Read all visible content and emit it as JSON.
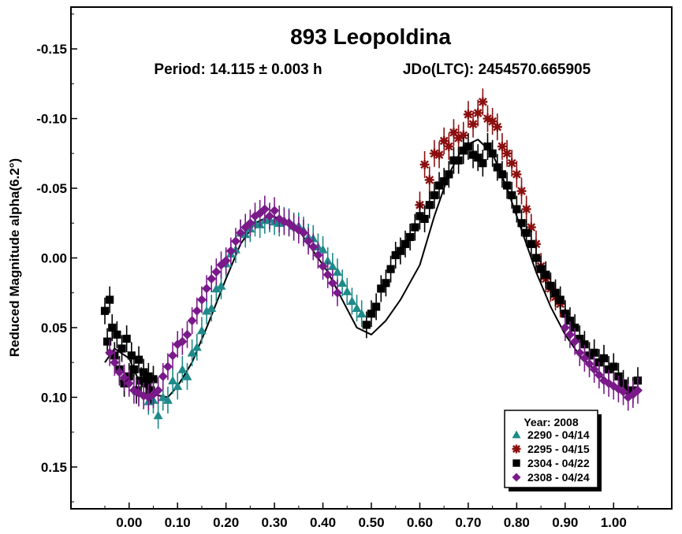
{
  "chart_data": {
    "type": "scatter",
    "title": "893 Leopoldina",
    "subtitle_period": "Period: 14.115 ± 0.003 h",
    "subtitle_epoch": "JDo(LTC): 2454570.665905",
    "xlabel": "",
    "ylabel": "Reduced Magnitude alpha(6.2°)",
    "xlim": [
      -0.12,
      1.12
    ],
    "ylim": [
      0.18,
      -0.18
    ],
    "y_inverted": true,
    "x_ticks": [
      0.0,
      0.1,
      0.2,
      0.3,
      0.4,
      0.5,
      0.6,
      0.7,
      0.8,
      0.9,
      1.0
    ],
    "x_tick_labels": [
      "0.00",
      "0.10",
      "0.20",
      "0.30",
      "0.40",
      "0.50",
      "0.60",
      "0.70",
      "0.80",
      "0.90",
      "1.00"
    ],
    "y_ticks": [
      -0.15,
      -0.1,
      -0.05,
      0.0,
      0.05,
      0.1,
      0.15
    ],
    "y_tick_labels": [
      "-0.15",
      "-0.10",
      "-0.05",
      "0.00",
      "0.05",
      "0.10",
      "0.15"
    ],
    "grid": false,
    "legend": {
      "title": "Year: 2008",
      "placement": "bottom-right",
      "entries": [
        {
          "label": "2290 - 04/14",
          "marker": "triangle",
          "color": "#1f8a8a"
        },
        {
          "label": "2295 - 04/15",
          "marker": "asterisk",
          "color": "#8b0f0f"
        },
        {
          "label": "2304 - 04/22",
          "marker": "square",
          "color": "#000000"
        },
        {
          "label": "2308 - 04/24",
          "marker": "diamond",
          "color": "#7a1a8a"
        }
      ]
    },
    "fit_curve": {
      "name": "Fourier fit",
      "color": "#000000",
      "x": [
        -0.05,
        -0.03,
        0.0,
        0.02,
        0.05,
        0.08,
        0.1,
        0.13,
        0.16,
        0.2,
        0.23,
        0.26,
        0.29,
        0.32,
        0.35,
        0.38,
        0.41,
        0.44,
        0.47,
        0.5,
        0.53,
        0.56,
        0.6,
        0.63,
        0.66,
        0.69,
        0.72,
        0.75,
        0.78,
        0.81,
        0.84,
        0.87,
        0.9,
        0.93,
        0.96,
        0.99,
        1.02,
        1.05
      ],
      "y": [
        0.075,
        0.065,
        0.072,
        0.088,
        0.098,
        0.1,
        0.092,
        0.075,
        0.05,
        0.015,
        -0.01,
        -0.025,
        -0.03,
        -0.028,
        -0.02,
        -0.005,
        0.01,
        0.03,
        0.05,
        0.055,
        0.045,
        0.03,
        0.005,
        -0.03,
        -0.06,
        -0.08,
        -0.085,
        -0.075,
        -0.05,
        -0.02,
        0.01,
        0.035,
        0.055,
        0.07,
        0.08,
        0.09,
        0.095,
        0.097
      ]
    },
    "series": [
      {
        "name": "2290 - 04/14",
        "marker": "triangle",
        "color": "#1f8a8a",
        "x": [
          0.02,
          0.04,
          0.05,
          0.06,
          0.07,
          0.08,
          0.09,
          0.1,
          0.11,
          0.12,
          0.13,
          0.14,
          0.15,
          0.16,
          0.17,
          0.18,
          0.19,
          0.2,
          0.21,
          0.22,
          0.23,
          0.24,
          0.25,
          0.26,
          0.27,
          0.28,
          0.29,
          0.3,
          0.31,
          0.32,
          0.33,
          0.34,
          0.35,
          0.36,
          0.37,
          0.38,
          0.39,
          0.4,
          0.41,
          0.42,
          0.43,
          0.44,
          0.45,
          0.46,
          0.47,
          0.48
        ],
        "y": [
          0.096,
          0.103,
          0.102,
          0.113,
          0.1,
          0.102,
          0.088,
          0.092,
          0.08,
          0.085,
          0.068,
          0.064,
          0.052,
          0.038,
          0.036,
          0.022,
          0.02,
          0.004,
          -0.003,
          -0.006,
          -0.018,
          -0.017,
          -0.021,
          -0.025,
          -0.024,
          -0.027,
          -0.028,
          -0.026,
          -0.025,
          -0.027,
          -0.026,
          -0.023,
          -0.023,
          -0.02,
          -0.015,
          -0.014,
          -0.008,
          -0.006,
          0.002,
          0.006,
          0.01,
          0.018,
          0.024,
          0.031,
          0.036,
          0.04
        ]
      },
      {
        "name": "2295 - 04/15",
        "marker": "asterisk",
        "color": "#8b0f0f",
        "x": [
          0.6,
          0.61,
          0.62,
          0.63,
          0.64,
          0.65,
          0.66,
          0.67,
          0.68,
          0.69,
          0.7,
          0.71,
          0.72,
          0.73,
          0.74,
          0.75,
          0.76,
          0.77,
          0.78,
          0.79,
          0.8,
          0.81,
          0.82,
          0.83,
          0.84,
          0.85,
          0.86,
          0.87,
          0.88,
          0.89,
          0.9
        ],
        "y": [
          -0.038,
          -0.067,
          -0.056,
          -0.075,
          -0.074,
          -0.084,
          -0.08,
          -0.09,
          -0.086,
          -0.088,
          -0.103,
          -0.096,
          -0.104,
          -0.112,
          -0.1,
          -0.098,
          -0.094,
          -0.08,
          -0.075,
          -0.068,
          -0.06,
          -0.048,
          -0.035,
          -0.022,
          -0.01,
          0.006,
          0.015,
          0.022,
          0.028,
          0.033,
          0.04
        ]
      },
      {
        "name": "2304 - 04/22",
        "marker": "square",
        "color": "#000000",
        "x": [
          -0.05,
          -0.045,
          -0.04,
          -0.035,
          -0.03,
          -0.025,
          -0.02,
          -0.015,
          -0.01,
          -0.005,
          0.0,
          0.005,
          0.01,
          0.015,
          0.02,
          0.025,
          0.03,
          0.035,
          0.04,
          0.045,
          0.05,
          0.49,
          0.5,
          0.51,
          0.52,
          0.53,
          0.54,
          0.55,
          0.56,
          0.57,
          0.58,
          0.59,
          0.6,
          0.61,
          0.62,
          0.63,
          0.64,
          0.65,
          0.66,
          0.67,
          0.68,
          0.69,
          0.7,
          0.71,
          0.72,
          0.73,
          0.74,
          0.75,
          0.76,
          0.77,
          0.78,
          0.79,
          0.8,
          0.81,
          0.82,
          0.83,
          0.84,
          0.85,
          0.86,
          0.87,
          0.88,
          0.89,
          0.9,
          0.91,
          0.92,
          0.93,
          0.94,
          0.95,
          0.96,
          0.97,
          0.98,
          0.99,
          1.0,
          1.01,
          1.02,
          1.03,
          1.04,
          1.05
        ],
        "y": [
          0.038,
          0.06,
          0.03,
          0.05,
          0.07,
          0.055,
          0.08,
          0.065,
          0.09,
          0.058,
          0.085,
          0.07,
          0.08,
          0.095,
          0.073,
          0.088,
          0.082,
          0.09,
          0.085,
          0.095,
          0.087,
          0.048,
          0.04,
          0.035,
          0.022,
          0.018,
          0.008,
          -0.002,
          -0.005,
          -0.01,
          -0.015,
          -0.022,
          -0.03,
          -0.028,
          -0.038,
          -0.045,
          -0.052,
          -0.055,
          -0.06,
          -0.07,
          -0.07,
          -0.077,
          -0.08,
          -0.074,
          -0.072,
          -0.068,
          -0.08,
          -0.075,
          -0.065,
          -0.06,
          -0.052,
          -0.045,
          -0.035,
          -0.025,
          -0.018,
          -0.01,
          0.0,
          0.008,
          0.012,
          0.02,
          0.025,
          0.03,
          0.04,
          0.045,
          0.05,
          0.058,
          0.062,
          0.07,
          0.068,
          0.075,
          0.072,
          0.08,
          0.078,
          0.085,
          0.09,
          0.095,
          0.095,
          0.088
        ]
      },
      {
        "name": "2308 - 04/24",
        "marker": "diamond",
        "color": "#7a1a8a",
        "x": [
          -0.04,
          -0.03,
          -0.02,
          -0.01,
          0.0,
          0.01,
          0.02,
          0.03,
          0.04,
          0.05,
          0.06,
          0.07,
          0.08,
          0.09,
          0.1,
          0.11,
          0.12,
          0.13,
          0.14,
          0.15,
          0.16,
          0.17,
          0.18,
          0.19,
          0.2,
          0.21,
          0.22,
          0.23,
          0.24,
          0.25,
          0.26,
          0.27,
          0.28,
          0.29,
          0.3,
          0.31,
          0.32,
          0.33,
          0.34,
          0.35,
          0.36,
          0.37,
          0.38,
          0.39,
          0.4,
          0.41,
          0.42,
          0.43,
          0.9,
          0.91,
          0.92,
          0.93,
          0.94,
          0.95,
          0.96,
          0.97,
          0.98,
          0.99,
          1.0,
          1.01,
          1.02,
          1.03,
          1.04,
          1.05
        ],
        "y": [
          0.068,
          0.075,
          0.082,
          0.086,
          0.09,
          0.095,
          0.097,
          0.099,
          0.1,
          0.098,
          0.095,
          0.085,
          0.078,
          0.07,
          0.062,
          0.06,
          0.055,
          0.045,
          0.038,
          0.03,
          0.022,
          0.015,
          0.01,
          0.005,
          0.002,
          -0.005,
          -0.012,
          -0.018,
          -0.022,
          -0.025,
          -0.03,
          -0.032,
          -0.035,
          -0.03,
          -0.034,
          -0.028,
          -0.026,
          -0.025,
          -0.022,
          -0.02,
          -0.018,
          -0.012,
          -0.008,
          -0.002,
          0.006,
          0.012,
          0.018,
          0.025,
          0.05,
          0.055,
          0.06,
          0.068,
          0.072,
          0.076,
          0.08,
          0.084,
          0.088,
          0.09,
          0.092,
          0.094,
          0.096,
          0.1,
          0.098,
          0.095
        ]
      }
    ]
  }
}
